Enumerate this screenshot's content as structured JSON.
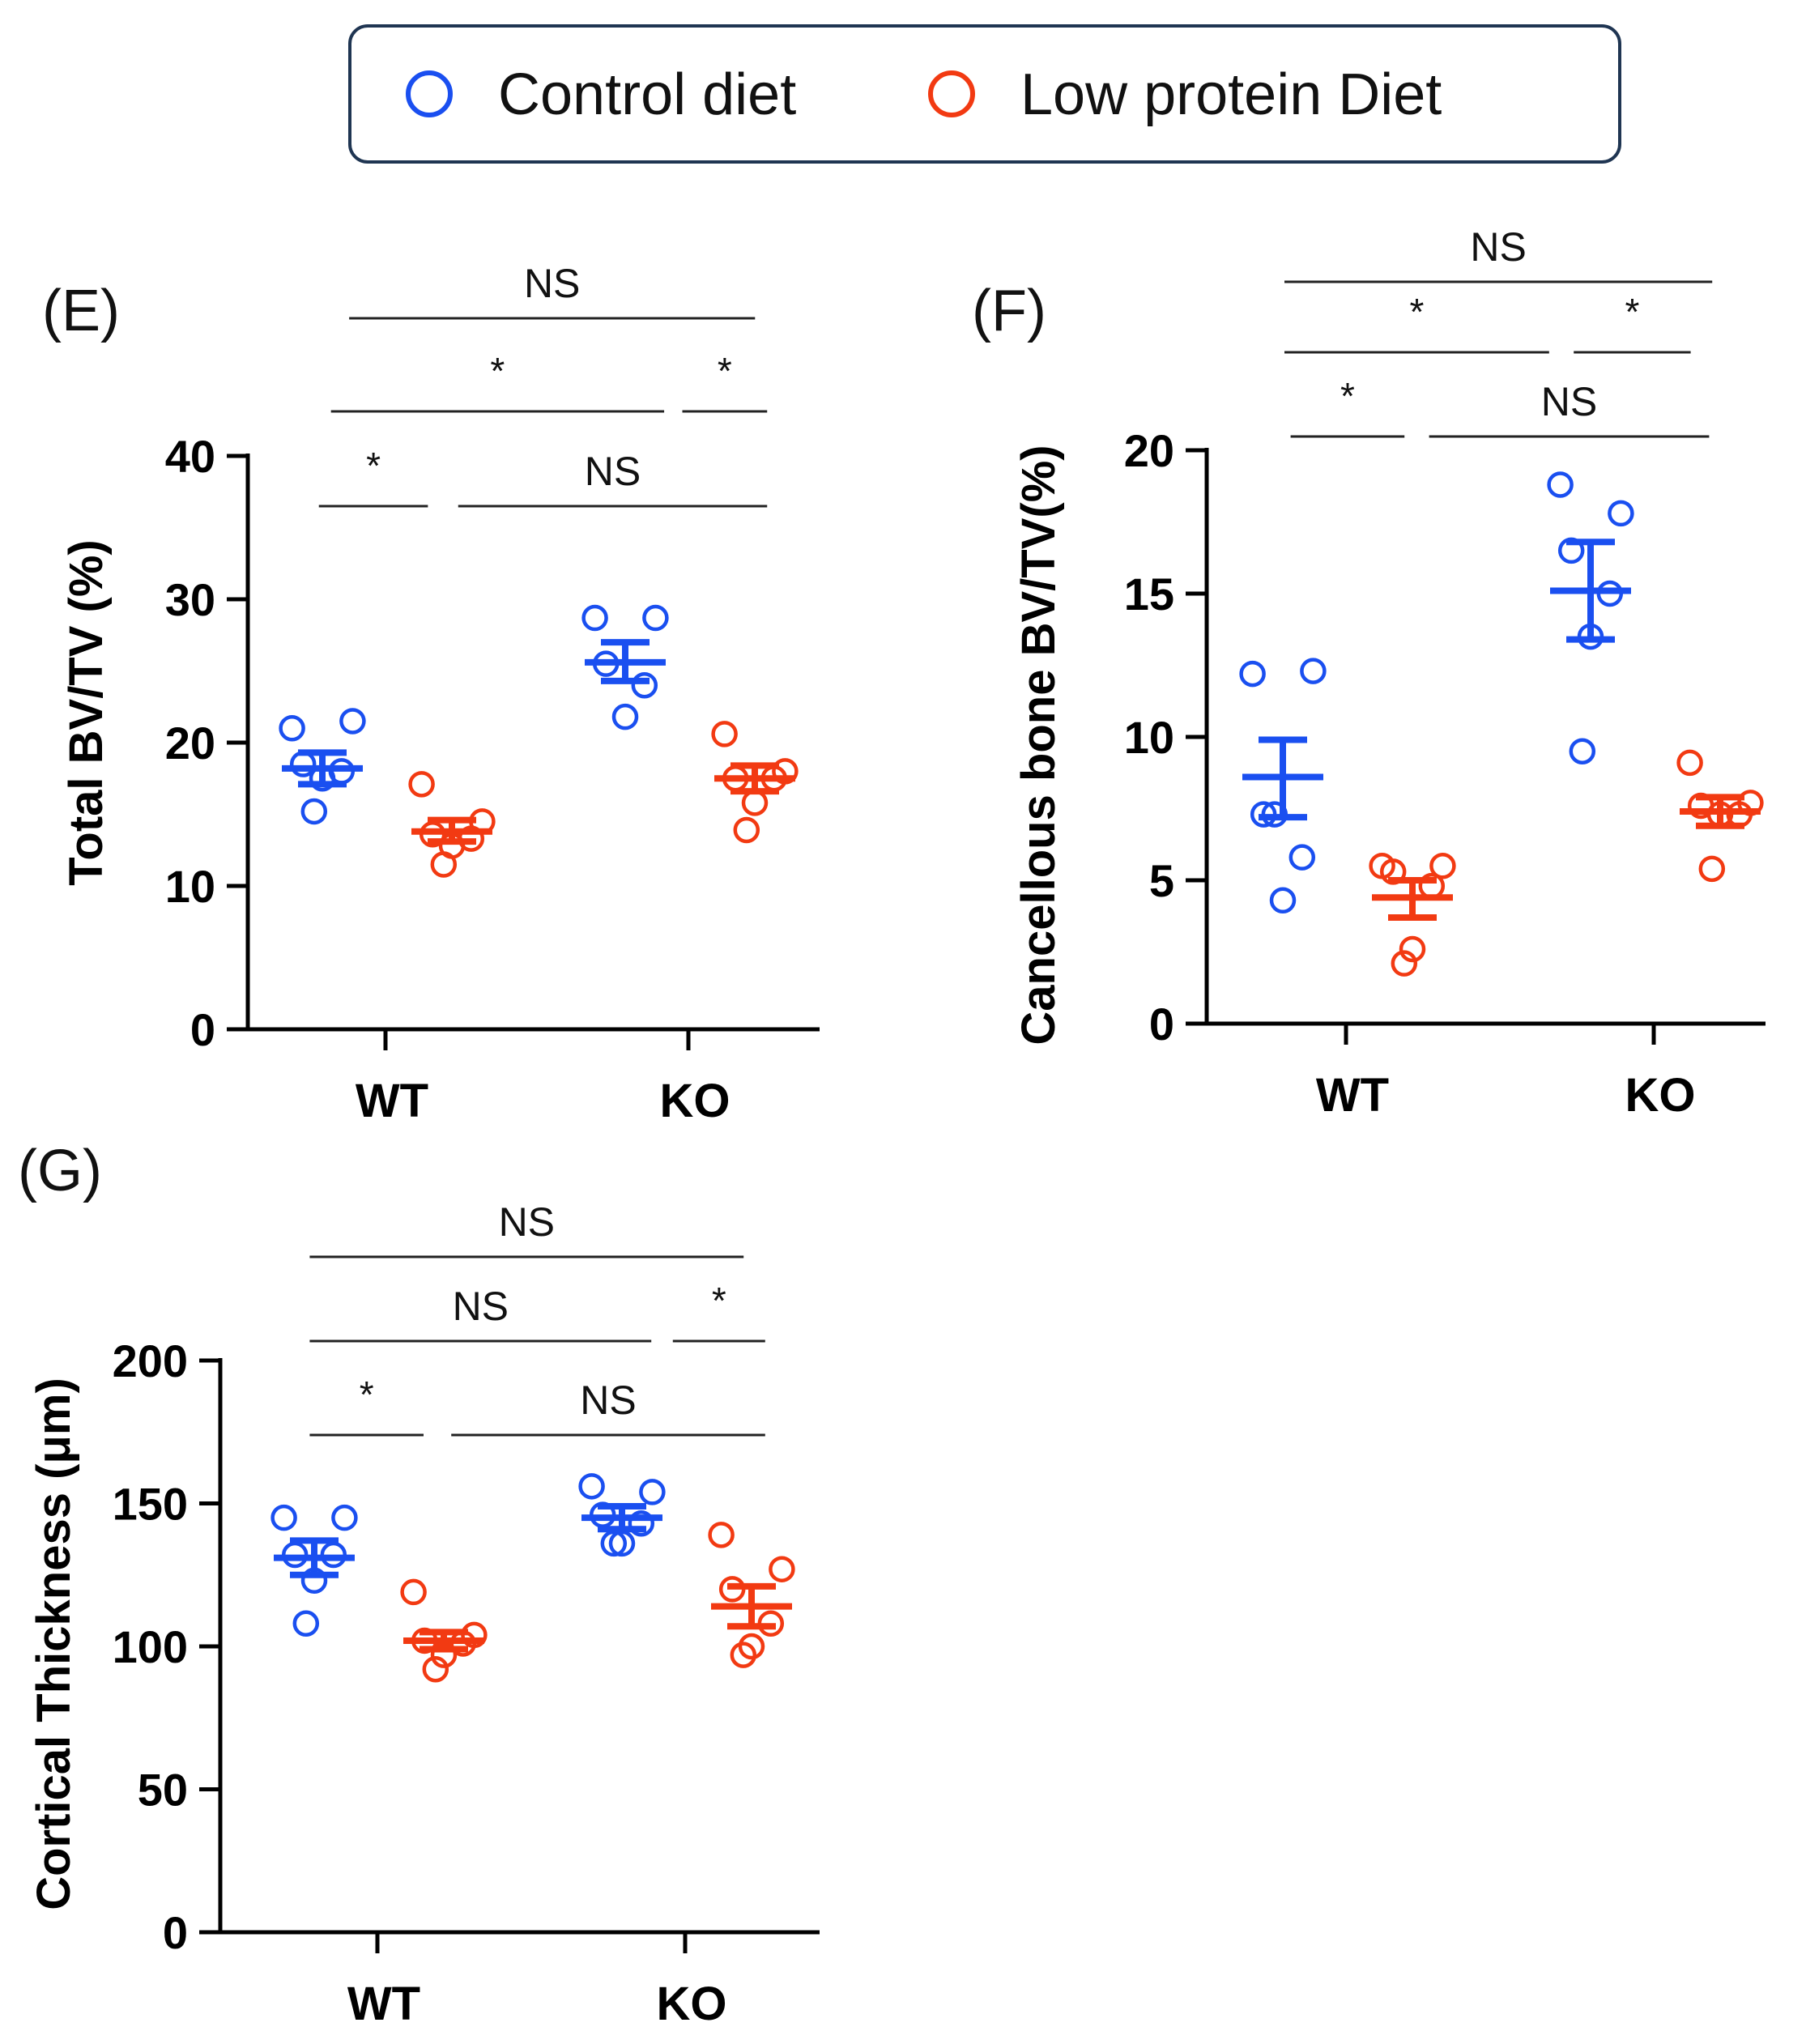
{
  "legend": {
    "items": [
      {
        "label": "Control diet",
        "color": "#1a4ff0"
      },
      {
        "label": "Low protein Diet",
        "color": "#f23a12"
      }
    ]
  },
  "chart_data": [
    {
      "type": "scatter",
      "panel": "(E)",
      "title": "",
      "xlabel": "",
      "ylabel": "Total BV/TV (%)",
      "ylim": [
        0,
        40
      ],
      "yticks": [
        0,
        10,
        20,
        30,
        40
      ],
      "categories": [
        "WT",
        "KO"
      ],
      "series": [
        {
          "name": "Control diet",
          "color": "#1a4ff0",
          "groups": [
            {
              "category": "WT",
              "points": [
                21.0,
                21.5,
                18.5,
                18.0,
                17.5,
                15.2
              ],
              "mean": 18.2,
              "sem_low": 17.1,
              "sem_high": 19.3
            },
            {
              "category": "KO",
              "points": [
                28.7,
                28.7,
                25.5,
                24.0,
                21.8
              ],
              "mean": 25.6,
              "sem_low": 24.3,
              "sem_high": 27.0
            }
          ]
        },
        {
          "name": "Low protein Diet",
          "color": "#f23a12",
          "groups": [
            {
              "category": "WT",
              "points": [
                17.1,
                14.5,
                13.6,
                13.3,
                12.8,
                11.5
              ],
              "mean": 13.8,
              "sem_low": 13.1,
              "sem_high": 14.6
            },
            {
              "category": "KO",
              "points": [
                20.6,
                18.0,
                17.5,
                17.5,
                15.8,
                13.9
              ],
              "mean": 17.5,
              "sem_low": 16.6,
              "sem_high": 18.4
            }
          ]
        }
      ],
      "annotations": [
        {
          "text": "NS",
          "x_from": 0.88,
          "x_to": 2.22,
          "level": 3
        },
        {
          "text": "*",
          "x_from": 0.82,
          "x_to": 1.92,
          "level": 2
        },
        {
          "text": "*",
          "x_from": 1.98,
          "x_to": 2.26,
          "level": 2
        },
        {
          "text": "*",
          "x_from": 0.78,
          "x_to": 1.14,
          "level": 1
        },
        {
          "text": "NS",
          "x_from": 1.24,
          "x_to": 2.26,
          "level": 1
        }
      ]
    },
    {
      "type": "scatter",
      "panel": "(F)",
      "title": "",
      "xlabel": "",
      "ylabel": "Cancellous bone BV/TV(%)",
      "ylim": [
        0,
        20
      ],
      "yticks": [
        0,
        5,
        10,
        15,
        20
      ],
      "categories": [
        "WT",
        "KO"
      ],
      "series": [
        {
          "name": "Control diet",
          "color": "#1a4ff0",
          "groups": [
            {
              "category": "WT",
              "points": [
                12.2,
                12.3,
                7.3,
                5.8,
                4.3,
                7.3
              ],
              "mean": 8.6,
              "sem_low": 7.2,
              "sem_high": 9.9
            },
            {
              "category": "KO",
              "points": [
                18.8,
                17.8,
                16.5,
                15.0,
                13.5,
                9.5
              ],
              "mean": 15.1,
              "sem_low": 13.4,
              "sem_high": 16.8
            },
            {
              "category": "",
              "points": [],
              "mean": null,
              "sem_low": null,
              "sem_high": null
            }
          ]
        },
        {
          "name": "Low protein Diet",
          "color": "#f23a12",
          "groups": [
            {
              "category": "WT",
              "points": [
                5.5,
                5.5,
                5.3,
                4.8,
                2.6,
                2.1
              ],
              "mean": 4.4,
              "sem_low": 3.7,
              "sem_high": 5.0
            },
            {
              "category": "KO",
              "points": [
                9.1,
                7.7,
                7.6,
                7.3,
                7.3,
                5.4
              ],
              "mean": 7.4,
              "sem_low": 6.9,
              "sem_high": 7.9
            }
          ]
        }
      ],
      "annotations": [
        {
          "text": "NS",
          "x_from": 0.8,
          "x_to": 2.19,
          "level": 3
        },
        {
          "text": "*",
          "x_from": 0.8,
          "x_to": 1.66,
          "level": 2
        },
        {
          "text": "*",
          "x_from": 1.74,
          "x_to": 2.12,
          "level": 2
        },
        {
          "text": "*",
          "x_from": 0.82,
          "x_to": 1.19,
          "level": 1
        },
        {
          "text": "NS",
          "x_from": 1.27,
          "x_to": 2.18,
          "level": 1
        }
      ]
    },
    {
      "type": "scatter",
      "panel": "(G)",
      "title": "",
      "xlabel": "",
      "ylabel": "Cortical Thickness (μm)",
      "ylim": [
        0,
        200
      ],
      "yticks": [
        0,
        50,
        100,
        150,
        200
      ],
      "categories": [
        "WT",
        "KO"
      ],
      "series": [
        {
          "name": "Control diet",
          "color": "#1a4ff0",
          "groups": [
            {
              "category": "WT",
              "points": [
                145,
                145,
                132,
                132,
                123,
                108
              ],
              "mean": 131,
              "sem_low": 125,
              "sem_high": 137
            },
            {
              "category": "KO",
              "points": [
                156,
                154,
                146,
                143,
                136,
                136
              ],
              "mean": 145,
              "sem_low": 141,
              "sem_high": 149
            }
          ]
        },
        {
          "name": "Low protein Diet",
          "color": "#f23a12",
          "groups": [
            {
              "category": "WT",
              "points": [
                119,
                104,
                102,
                101,
                97,
                92
              ],
              "mean": 102,
              "sem_low": 99,
              "sem_high": 105
            },
            {
              "category": "KO",
              "points": [
                139,
                127,
                120,
                108,
                100,
                97
              ],
              "mean": 114,
              "sem_low": 107,
              "sem_high": 121
            }
          ]
        }
      ],
      "annotations": [
        {
          "text": "NS",
          "x_from": 0.78,
          "x_to": 2.19,
          "level": 3
        },
        {
          "text": "NS",
          "x_from": 0.78,
          "x_to": 1.89,
          "level": 2
        },
        {
          "text": "*",
          "x_from": 1.96,
          "x_to": 2.26,
          "level": 2
        },
        {
          "text": "*",
          "x_from": 0.78,
          "x_to": 1.15,
          "level": 1
        },
        {
          "text": "NS",
          "x_from": 1.24,
          "x_to": 2.26,
          "level": 1
        }
      ]
    }
  ]
}
